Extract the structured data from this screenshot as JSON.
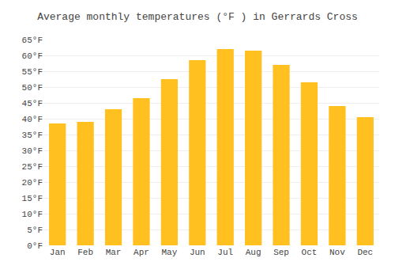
{
  "chart_data": {
    "type": "bar",
    "title": "Average monthly temperatures (°F ) in Gerrards Cross",
    "categories": [
      "Jan",
      "Feb",
      "Mar",
      "Apr",
      "May",
      "Jun",
      "Jul",
      "Aug",
      "Sep",
      "Oct",
      "Nov",
      "Dec"
    ],
    "values": [
      38.5,
      39.0,
      43.0,
      46.5,
      52.5,
      58.5,
      62.0,
      61.5,
      57.0,
      51.5,
      44.0,
      40.5
    ],
    "color": "#FFC020",
    "ylim": [
      0,
      65
    ],
    "yticks": [
      {
        "value": 0,
        "label": "0°F"
      },
      {
        "value": 5,
        "label": "5°F"
      },
      {
        "value": 10,
        "label": "10°F"
      },
      {
        "value": 15,
        "label": "15°F"
      },
      {
        "value": 20,
        "label": "20°F"
      },
      {
        "value": 25,
        "label": "25°F"
      },
      {
        "value": 30,
        "label": "30°F"
      },
      {
        "value": 35,
        "label": "35°F"
      },
      {
        "value": 40,
        "label": "40°F"
      },
      {
        "value": 45,
        "label": "45°F"
      },
      {
        "value": 50,
        "label": "50°F"
      },
      {
        "value": 55,
        "label": "55°F"
      },
      {
        "value": 60,
        "label": "60°F"
      },
      {
        "value": 65,
        "label": "65°F"
      }
    ],
    "grid": true
  }
}
